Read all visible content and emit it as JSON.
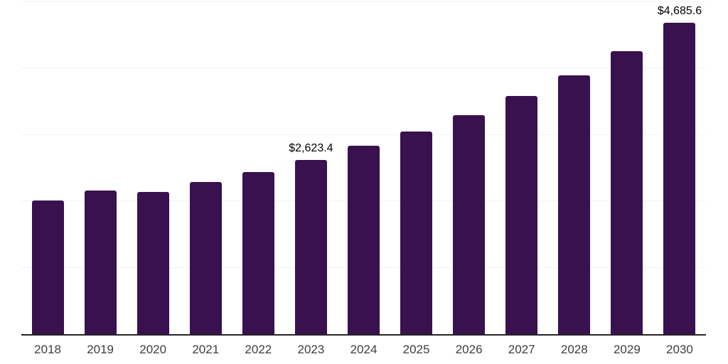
{
  "page": {
    "background": "#ffffff"
  },
  "chart_data": {
    "type": "bar",
    "title": "",
    "xlabel": "",
    "ylabel": "",
    "categories": [
      "2018",
      "2019",
      "2020",
      "2021",
      "2022",
      "2023",
      "2024",
      "2025",
      "2026",
      "2027",
      "2028",
      "2029",
      "2030"
    ],
    "values": [
      2010,
      2165,
      2145,
      2290,
      2440,
      2623.4,
      2835,
      3050,
      3295,
      3590,
      3900,
      4265,
      4685.6
    ],
    "data_labels": [
      null,
      null,
      null,
      null,
      null,
      "$2,623.4",
      null,
      null,
      null,
      null,
      null,
      null,
      "$4,685.6"
    ],
    "ylim": [
      0,
      5000
    ],
    "gridline_interval": 1000,
    "grid": "horizontal",
    "legend_position": "none",
    "y_tick_labels_visible": false,
    "bar_color": "#38114E",
    "axis_line_color": "#262626",
    "gridline_color": "#f2f2f2",
    "x_tick_label_color": "#3d3d3d",
    "data_label_color": "#000000"
  }
}
